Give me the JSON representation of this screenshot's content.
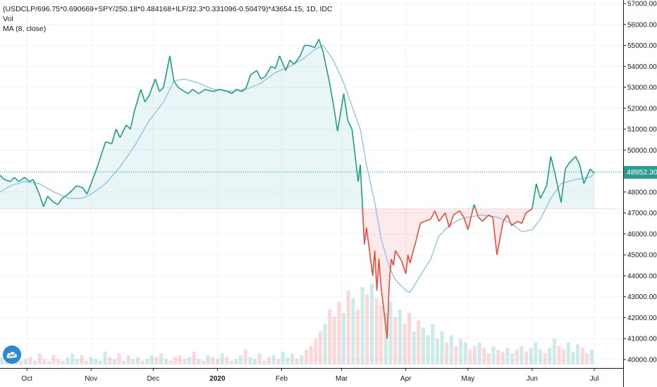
{
  "legend": {
    "symbol": "(USDCLP/696.75*0.690669+SPY/250.18*0.484168+ILF/32.3*0.331096-0.50479)*43654.15, 1D, IDC",
    "volume": "Vol",
    "moving_average": "MA (8, close)"
  },
  "last_price_label": "48952.30",
  "colors": {
    "up_line": "#1f9d84",
    "down_line": "#e74c3c",
    "ma_line": "#8fc3e8",
    "up_fill": "rgba(38,166,154,0.10)",
    "down_fill": "rgba(239,83,80,0.12)",
    "vol_up": "rgba(38,166,154,0.22)",
    "vol_down": "rgba(239,83,80,0.22)",
    "badge": "#2a9d8f"
  },
  "logo_icon": "tradingview-cloud-icon",
  "chart_data": {
    "type": "line",
    "ylim": [
      39700,
      57200
    ],
    "y_ticks": [
      "57000.00",
      "56000.00",
      "55000.00",
      "54000.00",
      "53000.00",
      "52000.00",
      "51000.00",
      "50000.00",
      "49000.00",
      "48000.00",
      "47000.00",
      "46000.00",
      "45000.00",
      "44000.00",
      "43000.00",
      "42000.00",
      "41000.00",
      "40000.00"
    ],
    "x_ticks": [
      {
        "label": "Oct",
        "date": "2019-10-01"
      },
      {
        "label": "Nov",
        "date": "2019-11-01"
      },
      {
        "label": "Dec",
        "date": "2019-12-01"
      },
      {
        "label": "2020",
        "date": "2020-01-01",
        "bold": true
      },
      {
        "label": "Feb",
        "date": "2020-02-01"
      },
      {
        "label": "Mar",
        "date": "2020-03-01"
      },
      {
        "label": "Apr",
        "date": "2020-04-01"
      },
      {
        "label": "May",
        "date": "2020-05-01"
      },
      {
        "label": "Jun",
        "date": "2020-06-01"
      },
      {
        "label": "Jul",
        "date": "2020-07-01"
      }
    ],
    "baseline": 47200,
    "last_value": 48952.3,
    "series": [
      {
        "values": [
          [
            "2019-09-18",
            48800
          ],
          [
            "2019-09-20",
            48600
          ],
          [
            "2019-09-23",
            48500
          ],
          [
            "2019-09-25",
            48700
          ],
          [
            "2019-09-27",
            48500
          ],
          [
            "2019-09-30",
            48700
          ],
          [
            "2019-10-02",
            48500
          ],
          [
            "2019-10-04",
            48600
          ],
          [
            "2019-10-07",
            47900
          ],
          [
            "2019-10-09",
            47300
          ],
          [
            "2019-10-11",
            47800
          ],
          [
            "2019-10-14",
            47500
          ],
          [
            "2019-10-16",
            47400
          ],
          [
            "2019-10-18",
            47700
          ],
          [
            "2019-10-21",
            47900
          ],
          [
            "2019-10-23",
            48100
          ],
          [
            "2019-10-25",
            48300
          ],
          [
            "2019-10-28",
            48200
          ],
          [
            "2019-10-30",
            47900
          ],
          [
            "2019-11-01",
            48400
          ],
          [
            "2019-11-04",
            49200
          ],
          [
            "2019-11-06",
            49800
          ],
          [
            "2019-11-08",
            50400
          ],
          [
            "2019-11-11",
            50300
          ],
          [
            "2019-11-13",
            51000
          ],
          [
            "2019-11-15",
            50600
          ],
          [
            "2019-11-18",
            51200
          ],
          [
            "2019-11-20",
            51000
          ],
          [
            "2019-11-22",
            51900
          ],
          [
            "2019-11-25",
            52900
          ],
          [
            "2019-11-27",
            52300
          ],
          [
            "2019-11-29",
            52600
          ],
          [
            "2019-12-02",
            53400
          ],
          [
            "2019-12-04",
            52800
          ],
          [
            "2019-12-06",
            53000
          ],
          [
            "2019-12-09",
            54500
          ],
          [
            "2019-12-11",
            53300
          ],
          [
            "2019-12-13",
            53000
          ],
          [
            "2019-12-16",
            52800
          ],
          [
            "2019-12-18",
            52700
          ],
          [
            "2019-12-20",
            52900
          ],
          [
            "2019-12-23",
            52700
          ],
          [
            "2019-12-26",
            52900
          ],
          [
            "2019-12-30",
            52800
          ],
          [
            "2020-01-02",
            52900
          ],
          [
            "2020-01-06",
            52800
          ],
          [
            "2020-01-08",
            52700
          ],
          [
            "2020-01-10",
            52900
          ],
          [
            "2020-01-13",
            52800
          ],
          [
            "2020-01-15",
            53000
          ],
          [
            "2020-01-17",
            53600
          ],
          [
            "2020-01-20",
            53800
          ],
          [
            "2020-01-22",
            53400
          ],
          [
            "2020-01-24",
            53500
          ],
          [
            "2020-01-27",
            54000
          ],
          [
            "2020-01-29",
            53900
          ],
          [
            "2020-01-31",
            54500
          ],
          [
            "2020-02-03",
            53800
          ],
          [
            "2020-02-05",
            54300
          ],
          [
            "2020-02-07",
            54100
          ],
          [
            "2020-02-10",
            54500
          ],
          [
            "2020-02-12",
            55000
          ],
          [
            "2020-02-14",
            55000
          ],
          [
            "2020-02-17",
            54900
          ],
          [
            "2020-02-19",
            55300
          ],
          [
            "2020-02-21",
            54700
          ],
          [
            "2020-02-24",
            53300
          ],
          [
            "2020-02-26",
            52200
          ],
          [
            "2020-02-28",
            50900
          ],
          [
            "2020-03-02",
            52700
          ],
          [
            "2020-03-04",
            51400
          ],
          [
            "2020-03-06",
            51000
          ],
          [
            "2020-03-09",
            48500
          ],
          [
            "2020-03-10",
            49300
          ],
          [
            "2020-03-12",
            45500
          ],
          [
            "2020-03-13",
            46300
          ],
          [
            "2020-03-16",
            44000
          ],
          [
            "2020-03-17",
            45200
          ],
          [
            "2020-03-18",
            43300
          ],
          [
            "2020-03-19",
            44800
          ],
          [
            "2020-03-20",
            43500
          ],
          [
            "2020-03-23",
            41000
          ],
          [
            "2020-03-24",
            43700
          ],
          [
            "2020-03-25",
            44800
          ],
          [
            "2020-03-26",
            44500
          ],
          [
            "2020-03-27",
            45200
          ],
          [
            "2020-03-30",
            44700
          ],
          [
            "2020-04-01",
            44100
          ],
          [
            "2020-04-02",
            45000
          ],
          [
            "2020-04-03",
            44600
          ],
          [
            "2020-04-06",
            45700
          ],
          [
            "2020-04-08",
            46500
          ],
          [
            "2020-04-10",
            46600
          ],
          [
            "2020-04-13",
            46700
          ],
          [
            "2020-04-15",
            47100
          ],
          [
            "2020-04-17",
            46600
          ],
          [
            "2020-04-20",
            47000
          ],
          [
            "2020-04-22",
            46300
          ],
          [
            "2020-04-24",
            46900
          ],
          [
            "2020-04-27",
            47100
          ],
          [
            "2020-04-29",
            46800
          ],
          [
            "2020-05-01",
            46200
          ],
          [
            "2020-05-04",
            47400
          ],
          [
            "2020-05-06",
            46800
          ],
          [
            "2020-05-08",
            46600
          ],
          [
            "2020-05-11",
            46900
          ],
          [
            "2020-05-13",
            46800
          ],
          [
            "2020-05-15",
            45000
          ],
          [
            "2020-05-18",
            46600
          ],
          [
            "2020-05-20",
            46900
          ],
          [
            "2020-05-22",
            46400
          ],
          [
            "2020-05-25",
            46600
          ],
          [
            "2020-05-27",
            46500
          ],
          [
            "2020-05-29",
            47000
          ],
          [
            "2020-06-01",
            47200
          ],
          [
            "2020-06-03",
            48400
          ],
          [
            "2020-06-05",
            47700
          ],
          [
            "2020-06-08",
            48300
          ],
          [
            "2020-06-10",
            49700
          ],
          [
            "2020-06-12",
            48900
          ],
          [
            "2020-06-15",
            47500
          ],
          [
            "2020-06-17",
            49100
          ],
          [
            "2020-06-19",
            49400
          ],
          [
            "2020-06-22",
            49700
          ],
          [
            "2020-06-24",
            49300
          ],
          [
            "2020-06-26",
            48400
          ],
          [
            "2020-06-29",
            49100
          ],
          [
            "2020-07-01",
            48900
          ]
        ]
      },
      {
        "name": "MA (8, close)",
        "values": [
          [
            "2019-09-18",
            48000
          ],
          [
            "2019-09-23",
            48300
          ],
          [
            "2019-09-30",
            48500
          ],
          [
            "2019-10-07",
            48400
          ],
          [
            "2019-10-14",
            48000
          ],
          [
            "2019-10-21",
            47700
          ],
          [
            "2019-10-28",
            47700
          ],
          [
            "2019-11-01",
            47900
          ],
          [
            "2019-11-08",
            48400
          ],
          [
            "2019-11-15",
            49200
          ],
          [
            "2019-11-22",
            50200
          ],
          [
            "2019-11-29",
            51400
          ],
          [
            "2019-12-06",
            52300
          ],
          [
            "2019-12-11",
            53300
          ],
          [
            "2019-12-16",
            53400
          ],
          [
            "2019-12-23",
            53200
          ],
          [
            "2019-12-30",
            52900
          ],
          [
            "2020-01-08",
            52800
          ],
          [
            "2020-01-15",
            52900
          ],
          [
            "2020-01-22",
            53200
          ],
          [
            "2020-01-29",
            53700
          ],
          [
            "2020-02-05",
            54000
          ],
          [
            "2020-02-12",
            54400
          ],
          [
            "2020-02-17",
            54800
          ],
          [
            "2020-02-21",
            55000
          ],
          [
            "2020-02-26",
            54300
          ],
          [
            "2020-03-02",
            53200
          ],
          [
            "2020-03-06",
            52100
          ],
          [
            "2020-03-10",
            51000
          ],
          [
            "2020-03-13",
            49300
          ],
          [
            "2020-03-17",
            47500
          ],
          [
            "2020-03-20",
            45800
          ],
          [
            "2020-03-24",
            44400
          ],
          [
            "2020-03-27",
            43800
          ],
          [
            "2020-04-01",
            43300
          ],
          [
            "2020-04-03",
            43200
          ],
          [
            "2020-04-08",
            44000
          ],
          [
            "2020-04-13",
            44800
          ],
          [
            "2020-04-17",
            45900
          ],
          [
            "2020-04-22",
            46400
          ],
          [
            "2020-04-27",
            46700
          ],
          [
            "2020-05-01",
            46800
          ],
          [
            "2020-05-08",
            46900
          ],
          [
            "2020-05-15",
            46800
          ],
          [
            "2020-05-22",
            46500
          ],
          [
            "2020-05-27",
            46100
          ],
          [
            "2020-06-01",
            46200
          ],
          [
            "2020-06-05",
            46700
          ],
          [
            "2020-06-10",
            47700
          ],
          [
            "2020-06-15",
            48400
          ],
          [
            "2020-06-22",
            48600
          ],
          [
            "2020-06-29",
            48700
          ],
          [
            "2020-07-01",
            48900
          ]
        ]
      }
    ],
    "volume_bars": [
      4,
      2,
      3,
      5,
      2,
      3,
      4,
      2,
      6,
      3,
      2,
      5,
      3,
      2,
      4,
      6,
      3,
      5,
      2,
      4,
      3,
      2,
      7,
      4,
      3,
      6,
      2,
      5,
      3,
      4,
      2,
      3,
      5,
      4,
      6,
      3,
      2,
      4,
      5,
      3,
      4,
      7,
      3,
      2,
      5,
      4,
      3,
      6,
      4,
      2,
      3,
      5,
      8,
      4,
      3,
      6,
      2,
      4,
      5,
      3,
      7,
      4,
      6,
      3,
      5,
      8,
      10,
      14,
      18,
      22,
      30,
      26,
      34,
      28,
      40,
      36,
      30,
      42,
      38,
      44,
      36,
      32,
      28,
      34,
      26,
      30,
      22,
      28,
      18,
      24,
      20,
      16,
      22,
      14,
      18,
      12,
      16,
      10,
      14,
      12,
      8,
      10,
      12,
      9,
      6,
      10,
      8,
      7,
      9,
      6,
      8,
      10,
      7,
      9,
      12,
      8,
      6,
      9,
      14,
      10,
      8,
      12,
      7,
      11,
      9,
      6,
      8
    ]
  }
}
